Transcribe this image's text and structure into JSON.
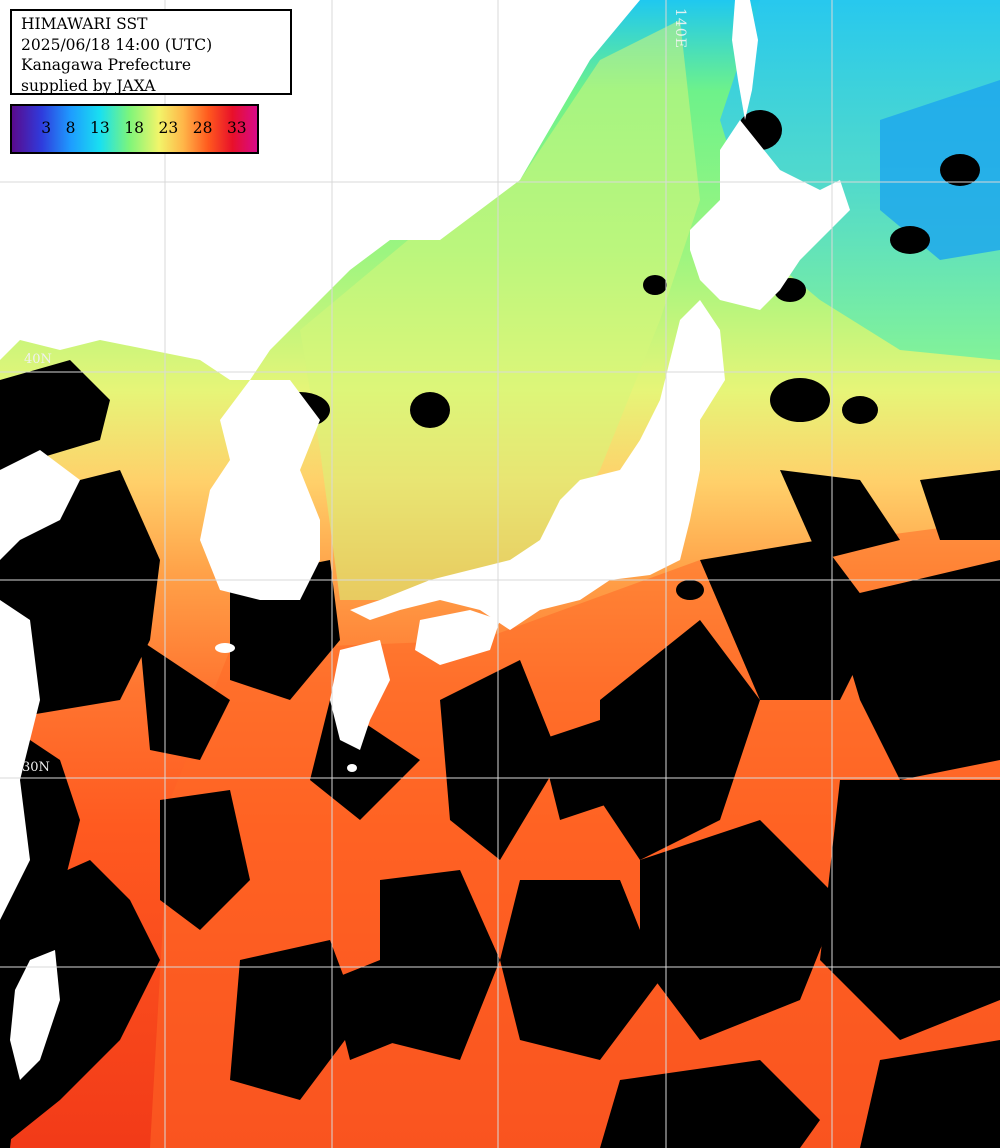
{
  "header": {
    "title": "HIMAWARI SST",
    "datetime": "2025/06/18 14:00 (UTC)",
    "region": "Kanagawa Prefecture",
    "credit": "supplied by JAXA"
  },
  "legend": {
    "ticks": [
      "3",
      "8",
      "13",
      "18",
      "23",
      "28",
      "33"
    ],
    "gradient_colors": [
      "#5a0a8c",
      "#2f3bdc",
      "#1e9cff",
      "#19e0f0",
      "#7ef57a",
      "#f2f56a",
      "#ffb548",
      "#ff5a1e",
      "#e8102a",
      "#d80a8a"
    ]
  },
  "grid": {
    "lon_label": "140E",
    "lat_labels": [
      "30N",
      "40N"
    ]
  },
  "colors": {
    "land": "#ffffff",
    "cloud": "#000000",
    "grid": "#d9d9d9"
  }
}
